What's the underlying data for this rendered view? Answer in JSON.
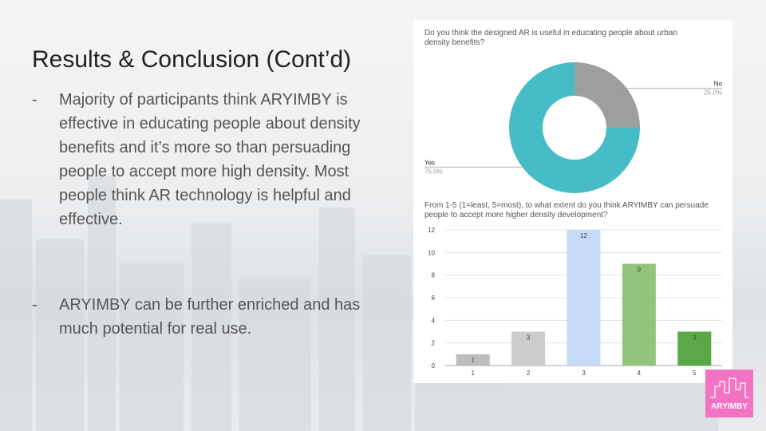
{
  "slide": {
    "title": "Results & Conclusion (Cont’d)",
    "bullets": [
      {
        "marker": "-",
        "text": "Majority of participants think ARYIMBY is effective in educating people about density benefits and it’s more so than persuading people to accept more high density. Most people think AR technology is helpful and effective."
      },
      {
        "marker": "-",
        "text": "ARYIMBY can be further enriched and has much potential for real use."
      }
    ],
    "logo": "ARYIMBY"
  },
  "chart_data": [
    {
      "type": "donut",
      "title": "Do you think the designed AR is useful in educating people about urban density benefits?",
      "categories": [
        "No",
        "Yes"
      ],
      "values": [
        25,
        75
      ],
      "value_labels": [
        "25.0%",
        "75.0%"
      ],
      "colors": [
        "#9e9e9e",
        "#46bdc6"
      ]
    },
    {
      "type": "bar",
      "title": "From 1-5 (1=least, 5=most), to what extent do you think ARYIMBY can persuade people to accept more higher density development?",
      "categories": [
        "1",
        "2",
        "3",
        "4",
        "5"
      ],
      "values": [
        1,
        3,
        12,
        9,
        3
      ],
      "colors": [
        "#bdbdbd",
        "#cccccc",
        "#c6d9f6",
        "#93c47d",
        "#5aa846"
      ],
      "ylim": [
        0,
        12
      ],
      "yticks": [
        0,
        2,
        4,
        6,
        8,
        10,
        12
      ],
      "grid": true
    }
  ]
}
